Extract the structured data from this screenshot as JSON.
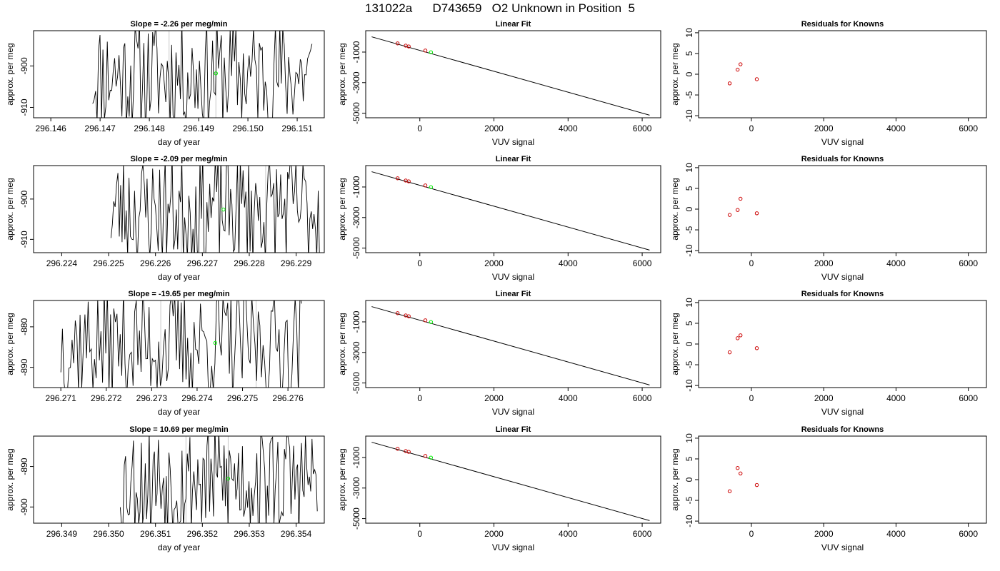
{
  "page": {
    "title": "131022a      D743659   O2 Unknown in Position  5"
  },
  "colors": {
    "trace": "#000000",
    "known_points": "#cc0000",
    "unknown_point": "#00ee00",
    "guide_lines": "#c8c8c8"
  },
  "chart_data": [
    {
      "type": "line",
      "panel": "time-series-1",
      "title": "Slope =  -2.26  per meg/min",
      "xlabel": "day of year",
      "ylabel": "approx. per meg",
      "xlim": [
        296.14565,
        296.15155
      ],
      "ylim": [
        -912.5,
        -891.5
      ],
      "xticks": [
        296.146,
        296.147,
        296.148,
        296.149,
        296.15,
        296.151
      ],
      "xtick_labels": [
        "296.146",
        "296.147",
        "296.148",
        "296.149",
        "296.150",
        "296.151"
      ],
      "yticks": [
        -900,
        -910
      ],
      "ytick_labels": [
        "-900",
        "-910"
      ],
      "vlines": [
        296.1484,
        296.14935
      ],
      "unknown_point": {
        "x": 296.14935,
        "y": -901.8
      },
      "trace_x_range": [
        296.14685,
        296.1513
      ],
      "trace_seed": 11
    },
    {
      "type": "scatter",
      "panel": "linear-fit-1",
      "title": "Linear Fit",
      "xlabel": "VUV signal",
      "ylabel": "approx. per meg",
      "xlim": [
        -1460,
        6500
      ],
      "ylim": [
        -5300,
        400
      ],
      "xticks": [
        0,
        2000,
        4000,
        6000
      ],
      "xtick_labels": [
        "0",
        "2000",
        "4000",
        "6000"
      ],
      "yticks": [
        -1000,
        -3000,
        -5000
      ],
      "ytick_labels": [
        "-1000",
        "-3000",
        "-5000"
      ],
      "fit_line": [
        [
          -1300,
          0
        ],
        [
          6200,
          -5130
        ]
      ],
      "known_points": [
        {
          "x": -600,
          "y": -430
        },
        {
          "x": -380,
          "y": -580
        },
        {
          "x": -300,
          "y": -630
        },
        {
          "x": 150,
          "y": -900
        }
      ],
      "unknown_point": {
        "x": 300,
        "y": -1010
      }
    },
    {
      "type": "scatter",
      "panel": "residuals-1",
      "title": "Residuals for Knowns",
      "xlabel": "VUV signal",
      "ylabel": "approx. per meg",
      "xlim": [
        -1460,
        6500
      ],
      "ylim": [
        -10.5,
        10.5
      ],
      "xticks": [
        0,
        2000,
        4000,
        6000
      ],
      "xtick_labels": [
        "0",
        "2000",
        "4000",
        "6000"
      ],
      "yticks": [
        10,
        5,
        0,
        -5,
        -10
      ],
      "ytick_labels": [
        "10",
        "5",
        "0",
        "-5",
        "-10"
      ],
      "known_points": [
        {
          "x": -600,
          "y": -2.2
        },
        {
          "x": -380,
          "y": 1.1
        },
        {
          "x": -300,
          "y": 2.4
        },
        {
          "x": 150,
          "y": -1.2
        }
      ]
    },
    {
      "type": "line",
      "panel": "time-series-2",
      "title": "Slope =  -2.09  per meg/min",
      "xlabel": "day of year",
      "ylabel": "approx. per meg",
      "xlim": [
        296.2234,
        296.2296
      ],
      "ylim": [
        -913.3,
        -891.7
      ],
      "xticks": [
        296.224,
        296.225,
        296.226,
        296.227,
        296.228,
        296.229
      ],
      "xtick_labels": [
        "296.224",
        "296.225",
        "296.226",
        "296.227",
        "296.228",
        "296.229"
      ],
      "yticks": [
        -900,
        -910
      ],
      "ytick_labels": [
        "-900",
        "-910"
      ],
      "vlines": [
        296.22655,
        296.22835
      ],
      "unknown_point": {
        "x": 296.22745,
        "y": -902.6
      },
      "trace_x_range": [
        296.22505,
        296.2295
      ],
      "trace_seed": 23
    },
    {
      "type": "scatter",
      "panel": "linear-fit-2",
      "title": "Linear Fit",
      "xlabel": "VUV signal",
      "ylabel": "approx. per meg",
      "xlim": [
        -1460,
        6500
      ],
      "ylim": [
        -5300,
        400
      ],
      "xticks": [
        0,
        2000,
        4000,
        6000
      ],
      "xtick_labels": [
        "0",
        "2000",
        "4000",
        "6000"
      ],
      "yticks": [
        -1000,
        -3000,
        -5000
      ],
      "ytick_labels": [
        "-1000",
        "-3000",
        "-5000"
      ],
      "fit_line": [
        [
          -1300,
          0
        ],
        [
          6200,
          -5130
        ]
      ],
      "known_points": [
        {
          "x": -600,
          "y": -430
        },
        {
          "x": -380,
          "y": -580
        },
        {
          "x": -300,
          "y": -630
        },
        {
          "x": 150,
          "y": -900
        }
      ],
      "unknown_point": {
        "x": 300,
        "y": -1010
      }
    },
    {
      "type": "scatter",
      "panel": "residuals-2",
      "title": "Residuals for Knowns",
      "xlabel": "VUV signal",
      "ylabel": "approx. per meg",
      "xlim": [
        -1460,
        6500
      ],
      "ylim": [
        -10.5,
        10.5
      ],
      "xticks": [
        0,
        2000,
        4000,
        6000
      ],
      "xtick_labels": [
        "0",
        "2000",
        "4000",
        "6000"
      ],
      "yticks": [
        10,
        5,
        0,
        -5,
        -10
      ],
      "ytick_labels": [
        "10",
        "5",
        "0",
        "-5",
        "-10"
      ],
      "known_points": [
        {
          "x": -600,
          "y": -1.4
        },
        {
          "x": -380,
          "y": -0.2
        },
        {
          "x": -300,
          "y": 2.5
        },
        {
          "x": 150,
          "y": -1.0
        }
      ]
    },
    {
      "type": "line",
      "panel": "time-series-3",
      "title": "Slope =  -19.65  per meg/min",
      "xlabel": "day of year",
      "ylabel": "approx. per meg",
      "xlim": [
        296.2704,
        296.2768
      ],
      "ylim": [
        -895.0,
        -873.5
      ],
      "xticks": [
        296.271,
        296.272,
        296.273,
        296.274,
        296.275,
        296.276
      ],
      "xtick_labels": [
        "296.271",
        "296.272",
        "296.273",
        "296.274",
        "296.275",
        "296.276"
      ],
      "yticks": [
        -880,
        -890
      ],
      "ytick_labels": [
        "-880",
        "-890"
      ],
      "vlines": [
        296.2732,
        296.2753
      ],
      "unknown_point": {
        "x": 296.2744,
        "y": -884.0
      },
      "trace_x_range": [
        296.271,
        296.2763
      ],
      "trace_seed": 37
    },
    {
      "type": "scatter",
      "panel": "linear-fit-3",
      "title": "Linear Fit",
      "xlabel": "VUV signal",
      "ylabel": "approx. per meg",
      "xlim": [
        -1460,
        6500
      ],
      "ylim": [
        -5300,
        400
      ],
      "xticks": [
        0,
        2000,
        4000,
        6000
      ],
      "xtick_labels": [
        "0",
        "2000",
        "4000",
        "6000"
      ],
      "yticks": [
        -1000,
        -3000,
        -5000
      ],
      "ytick_labels": [
        "-1000",
        "-3000",
        "-5000"
      ],
      "fit_line": [
        [
          -1300,
          0
        ],
        [
          6200,
          -5130
        ]
      ],
      "known_points": [
        {
          "x": -600,
          "y": -430
        },
        {
          "x": -380,
          "y": -580
        },
        {
          "x": -300,
          "y": -630
        },
        {
          "x": 150,
          "y": -900
        }
      ],
      "unknown_point": {
        "x": 300,
        "y": -1010
      }
    },
    {
      "type": "scatter",
      "panel": "residuals-3",
      "title": "Residuals for Knowns",
      "xlabel": "VUV signal",
      "ylabel": "approx. per meg",
      "xlim": [
        -1460,
        6500
      ],
      "ylim": [
        -10.5,
        10.5
      ],
      "xticks": [
        0,
        2000,
        4000,
        6000
      ],
      "xtick_labels": [
        "0",
        "2000",
        "4000",
        "6000"
      ],
      "yticks": [
        10,
        5,
        0,
        -5,
        -10
      ],
      "ytick_labels": [
        "10",
        "5",
        "0",
        "-5",
        "-10"
      ],
      "known_points": [
        {
          "x": -600,
          "y": -2.0
        },
        {
          "x": -380,
          "y": 1.4
        },
        {
          "x": -300,
          "y": 2.1
        },
        {
          "x": 150,
          "y": -1.0
        }
      ]
    },
    {
      "type": "line",
      "panel": "time-series-4",
      "title": "Slope =  10.69  per meg/min",
      "xlabel": "day of year",
      "ylabel": "approx. per meg",
      "xlim": [
        296.3484,
        296.3546
      ],
      "ylim": [
        -904.0,
        -882.5
      ],
      "xticks": [
        296.349,
        296.35,
        296.351,
        296.352,
        296.353,
        296.354
      ],
      "xtick_labels": [
        "296.349",
        "296.350",
        "296.351",
        "296.352",
        "296.353",
        "296.354"
      ],
      "yticks": [
        -890,
        -900
      ],
      "ytick_labels": [
        "-890",
        "-900"
      ],
      "vlines": [
        296.35165,
        296.35255
      ],
      "unknown_point": {
        "x": 296.35255,
        "y": -893.0
      },
      "trace_x_range": [
        296.35025,
        296.35445
      ],
      "trace_seed": 53
    },
    {
      "type": "scatter",
      "panel": "linear-fit-4",
      "title": "Linear Fit",
      "xlabel": "VUV signal",
      "ylabel": "approx. per meg",
      "xlim": [
        -1460,
        6500
      ],
      "ylim": [
        -5300,
        400
      ],
      "xticks": [
        0,
        2000,
        4000,
        6000
      ],
      "xtick_labels": [
        "0",
        "2000",
        "4000",
        "6000"
      ],
      "yticks": [
        -1000,
        -3000,
        -5000
      ],
      "ytick_labels": [
        "-1000",
        "-3000",
        "-5000"
      ],
      "fit_line": [
        [
          -1300,
          0
        ],
        [
          6200,
          -5130
        ]
      ],
      "known_points": [
        {
          "x": -600,
          "y": -430
        },
        {
          "x": -380,
          "y": -580
        },
        {
          "x": -300,
          "y": -630
        },
        {
          "x": 150,
          "y": -900
        }
      ],
      "unknown_point": {
        "x": 300,
        "y": -1010
      }
    },
    {
      "type": "scatter",
      "panel": "residuals-4",
      "title": "Residuals for Knowns",
      "xlabel": "VUV signal",
      "ylabel": "approx. per meg",
      "xlim": [
        -1460,
        6500
      ],
      "ylim": [
        -10.5,
        10.5
      ],
      "xticks": [
        0,
        2000,
        4000,
        6000
      ],
      "xtick_labels": [
        "0",
        "2000",
        "4000",
        "6000"
      ],
      "yticks": [
        10,
        5,
        0,
        -5,
        -10
      ],
      "ytick_labels": [
        "10",
        "5",
        "0",
        "-5",
        "-10"
      ],
      "known_points": [
        {
          "x": -600,
          "y": -2.8
        },
        {
          "x": -380,
          "y": 2.8
        },
        {
          "x": -300,
          "y": 1.5
        },
        {
          "x": 150,
          "y": -1.3
        }
      ]
    }
  ]
}
